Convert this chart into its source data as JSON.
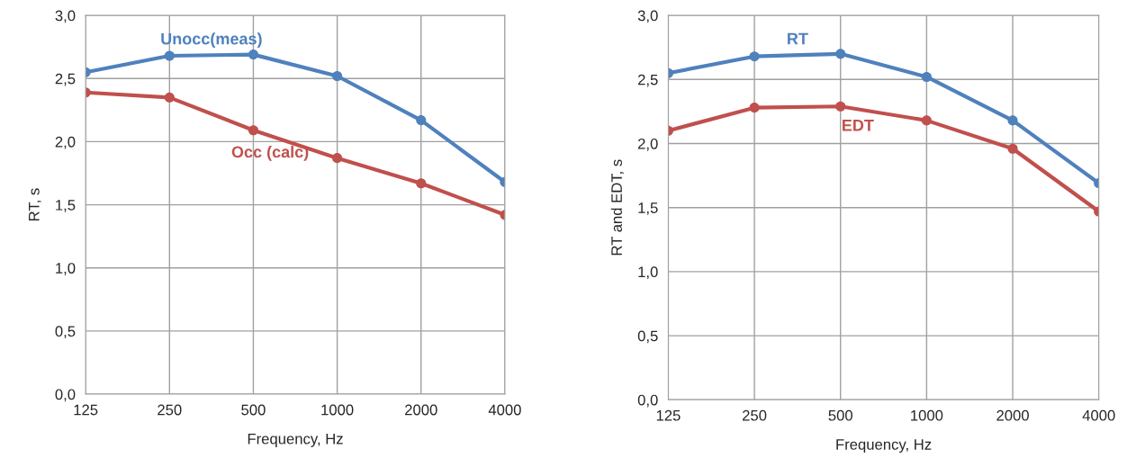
{
  "chart_data": [
    {
      "type": "line",
      "xlabel": "Frequency, Hz",
      "ylabel": "RT, s",
      "categories": [
        "125",
        "250",
        "500",
        "1000",
        "2000",
        "4000"
      ],
      "series": [
        {
          "name": "Unocc(meas)",
          "color": "#4f81bd",
          "values": [
            2.55,
            2.68,
            2.69,
            2.52,
            2.17,
            1.68
          ]
        },
        {
          "name": "Occ (calc)",
          "color": "#c0504d",
          "values": [
            2.39,
            2.35,
            2.09,
            1.87,
            1.67,
            1.42
          ]
        }
      ],
      "ylim": [
        0,
        3
      ],
      "yticks": [
        {
          "value": 0,
          "label": "0,0"
        },
        {
          "value": 0.5,
          "label": "0,5"
        },
        {
          "value": 1,
          "label": "1,0"
        },
        {
          "value": 1.5,
          "label": "1,5"
        },
        {
          "value": 2,
          "label": "2,0"
        },
        {
          "value": 2.5,
          "label": "2,5"
        },
        {
          "value": 3,
          "label": "3,0"
        }
      ],
      "grid": true,
      "marker": "circle",
      "line_style": "solid",
      "legend": false
    },
    {
      "type": "line",
      "xlabel": "Frequency, Hz",
      "ylabel": "RT and EDT, s",
      "categories": [
        "125",
        "250",
        "500",
        "1000",
        "2000",
        "4000"
      ],
      "series": [
        {
          "name": "RT",
          "color": "#4f81bd",
          "values": [
            2.55,
            2.68,
            2.7,
            2.52,
            2.18,
            1.69
          ]
        },
        {
          "name": "EDT",
          "color": "#c0504d",
          "values": [
            2.1,
            2.28,
            2.29,
            2.18,
            1.96,
            1.47
          ]
        }
      ],
      "ylim": [
        0,
        3
      ],
      "yticks": [
        {
          "value": 0,
          "label": "0,0"
        },
        {
          "value": 0.5,
          "label": "0,5"
        },
        {
          "value": 1,
          "label": "1,0"
        },
        {
          "value": 1.5,
          "label": "1,5"
        },
        {
          "value": 2,
          "label": "2,0"
        },
        {
          "value": 2.5,
          "label": "2,5"
        },
        {
          "value": 3,
          "label": "3,0"
        }
      ],
      "grid": true,
      "marker": "circle",
      "line_style": "solid",
      "legend": false
    }
  ]
}
